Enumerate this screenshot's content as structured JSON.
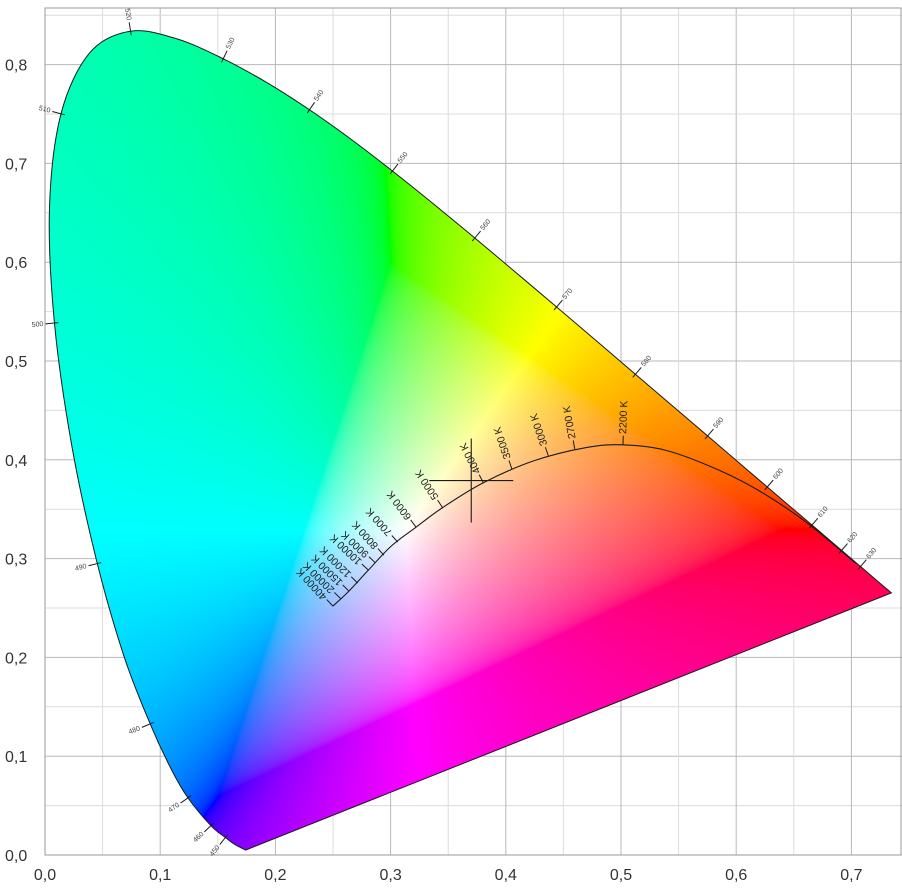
{
  "chart_data": {
    "type": "scatter",
    "title": "",
    "xlabel": "",
    "ylabel": "",
    "xlim": [
      0,
      0.74
    ],
    "ylim": [
      0,
      0.85
    ],
    "grid": true,
    "x_ticks": [
      "0,0",
      "0,1",
      "0,2",
      "0,3",
      "0,4",
      "0,5",
      "0,6",
      "0,7"
    ],
    "y_ticks": [
      "0,0",
      "0,1",
      "0,2",
      "0,3",
      "0,4",
      "0,5",
      "0,6",
      "0,7",
      "0,8"
    ],
    "spectral_locus": [
      {
        "nm": 380,
        "x": 0.1741,
        "y": 0.005
      },
      {
        "nm": 440,
        "x": 0.1644,
        "y": 0.0109
      },
      {
        "nm": 450,
        "x": 0.1566,
        "y": 0.0177
      },
      {
        "nm": 460,
        "x": 0.144,
        "y": 0.0297
      },
      {
        "nm": 470,
        "x": 0.1241,
        "y": 0.0578
      },
      {
        "nm": 475,
        "x": 0.1096,
        "y": 0.0868
      },
      {
        "nm": 480,
        "x": 0.0913,
        "y": 0.1327
      },
      {
        "nm": 485,
        "x": 0.0687,
        "y": 0.2007
      },
      {
        "nm": 490,
        "x": 0.0454,
        "y": 0.295
      },
      {
        "nm": 495,
        "x": 0.0235,
        "y": 0.4127
      },
      {
        "nm": 500,
        "x": 0.0082,
        "y": 0.5384
      },
      {
        "nm": 505,
        "x": 0.0039,
        "y": 0.6548
      },
      {
        "nm": 510,
        "x": 0.0139,
        "y": 0.7502
      },
      {
        "nm": 515,
        "x": 0.0389,
        "y": 0.812
      },
      {
        "nm": 520,
        "x": 0.0743,
        "y": 0.8338
      },
      {
        "nm": 525,
        "x": 0.1142,
        "y": 0.8262
      },
      {
        "nm": 530,
        "x": 0.1547,
        "y": 0.8059
      },
      {
        "nm": 535,
        "x": 0.1929,
        "y": 0.7816
      },
      {
        "nm": 540,
        "x": 0.2296,
        "y": 0.7543
      },
      {
        "nm": 545,
        "x": 0.2658,
        "y": 0.7243
      },
      {
        "nm": 550,
        "x": 0.3016,
        "y": 0.6923
      },
      {
        "nm": 555,
        "x": 0.3373,
        "y": 0.6589
      },
      {
        "nm": 560,
        "x": 0.3731,
        "y": 0.6245
      },
      {
        "nm": 565,
        "x": 0.4087,
        "y": 0.5896
      },
      {
        "nm": 570,
        "x": 0.4441,
        "y": 0.5547
      },
      {
        "nm": 575,
        "x": 0.4788,
        "y": 0.5202
      },
      {
        "nm": 580,
        "x": 0.5125,
        "y": 0.4866
      },
      {
        "nm": 585,
        "x": 0.5448,
        "y": 0.4544
      },
      {
        "nm": 590,
        "x": 0.5752,
        "y": 0.4242
      },
      {
        "nm": 595,
        "x": 0.6029,
        "y": 0.3965
      },
      {
        "nm": 600,
        "x": 0.627,
        "y": 0.3725
      },
      {
        "nm": 605,
        "x": 0.6482,
        "y": 0.3514
      },
      {
        "nm": 610,
        "x": 0.6658,
        "y": 0.334
      },
      {
        "nm": 620,
        "x": 0.6915,
        "y": 0.3083
      },
      {
        "nm": 630,
        "x": 0.7079,
        "y": 0.292
      },
      {
        "nm": 640,
        "x": 0.719,
        "y": 0.2809
      },
      {
        "nm": 700,
        "x": 0.7347,
        "y": 0.2653
      }
    ],
    "wavelength_labels": [
      {
        "nm": 450,
        "label": "450"
      },
      {
        "nm": 460,
        "label": "460"
      },
      {
        "nm": 470,
        "label": "470"
      },
      {
        "nm": 480,
        "label": "480"
      },
      {
        "nm": 490,
        "label": "490"
      },
      {
        "nm": 500,
        "label": "500"
      },
      {
        "nm": 510,
        "label": "510"
      },
      {
        "nm": 520,
        "label": "520"
      },
      {
        "nm": 530,
        "label": "530"
      },
      {
        "nm": 540,
        "label": "540"
      },
      {
        "nm": 550,
        "label": "550"
      },
      {
        "nm": 560,
        "label": "560"
      },
      {
        "nm": 570,
        "label": "570"
      },
      {
        "nm": 580,
        "label": "580"
      },
      {
        "nm": 590,
        "label": "590"
      },
      {
        "nm": 600,
        "label": "600"
      },
      {
        "nm": 610,
        "label": "610"
      },
      {
        "nm": 620,
        "label": "620"
      },
      {
        "nm": 630,
        "label": "630"
      }
    ],
    "planckian_locus": [
      {
        "x": 0.2499,
        "y": 0.2519
      },
      {
        "x": 0.2627,
        "y": 0.2658
      },
      {
        "x": 0.2807,
        "y": 0.2883
      },
      {
        "x": 0.3003,
        "y": 0.3124
      },
      {
        "x": 0.3221,
        "y": 0.3318
      },
      {
        "x": 0.3451,
        "y": 0.3516
      },
      {
        "x": 0.3805,
        "y": 0.3768
      },
      {
        "x": 0.4244,
        "y": 0.399
      },
      {
        "x": 0.4692,
        "y": 0.4123
      },
      {
        "x": 0.5017,
        "y": 0.4152
      },
      {
        "x": 0.5399,
        "y": 0.4093
      },
      {
        "x": 0.586,
        "y": 0.389
      },
      {
        "x": 0.6246,
        "y": 0.3654
      },
      {
        "x": 0.664,
        "y": 0.334
      },
      {
        "x": 0.704,
        "y": 0.295
      }
    ],
    "cct_ticks": [
      {
        "label": "40000 K",
        "x": 0.2499,
        "y": 0.2519
      },
      {
        "label": "20000 K",
        "x": 0.2568,
        "y": 0.2593
      },
      {
        "label": "15000 K",
        "x": 0.264,
        "y": 0.2669
      },
      {
        "label": "12000 K",
        "x": 0.2714,
        "y": 0.2752
      },
      {
        "label": "10000 K",
        "x": 0.2807,
        "y": 0.2883
      },
      {
        "label": "9000 K",
        "x": 0.2869,
        "y": 0.2956
      },
      {
        "label": "8000 K",
        "x": 0.2942,
        "y": 0.3034
      },
      {
        "label": "7000 K",
        "x": 0.3063,
        "y": 0.3166
      },
      {
        "label": "6000 K",
        "x": 0.3221,
        "y": 0.3318
      },
      {
        "label": "5000 K",
        "x": 0.3451,
        "y": 0.3516
      },
      {
        "label": "4000 K",
        "x": 0.3805,
        "y": 0.3768
      },
      {
        "label": "3500 K",
        "x": 0.4053,
        "y": 0.3907
      },
      {
        "label": "3000 K",
        "x": 0.4369,
        "y": 0.4041
      },
      {
        "label": "2700 K",
        "x": 0.4599,
        "y": 0.4106
      },
      {
        "label": "2200 K",
        "x": 0.5017,
        "y": 0.4152
      }
    ],
    "marker": {
      "x": 0.37,
      "y": 0.379,
      "shape": "cross"
    },
    "primaries_for_fill": {
      "red": {
        "x": 0.7347,
        "y": 0.2653
      },
      "green": {
        "x": 0.0743,
        "y": 0.8338
      },
      "blue": {
        "x": 0.1741,
        "y": 0.005
      },
      "white": {
        "x": 0.3333,
        "y": 0.3333
      }
    }
  }
}
